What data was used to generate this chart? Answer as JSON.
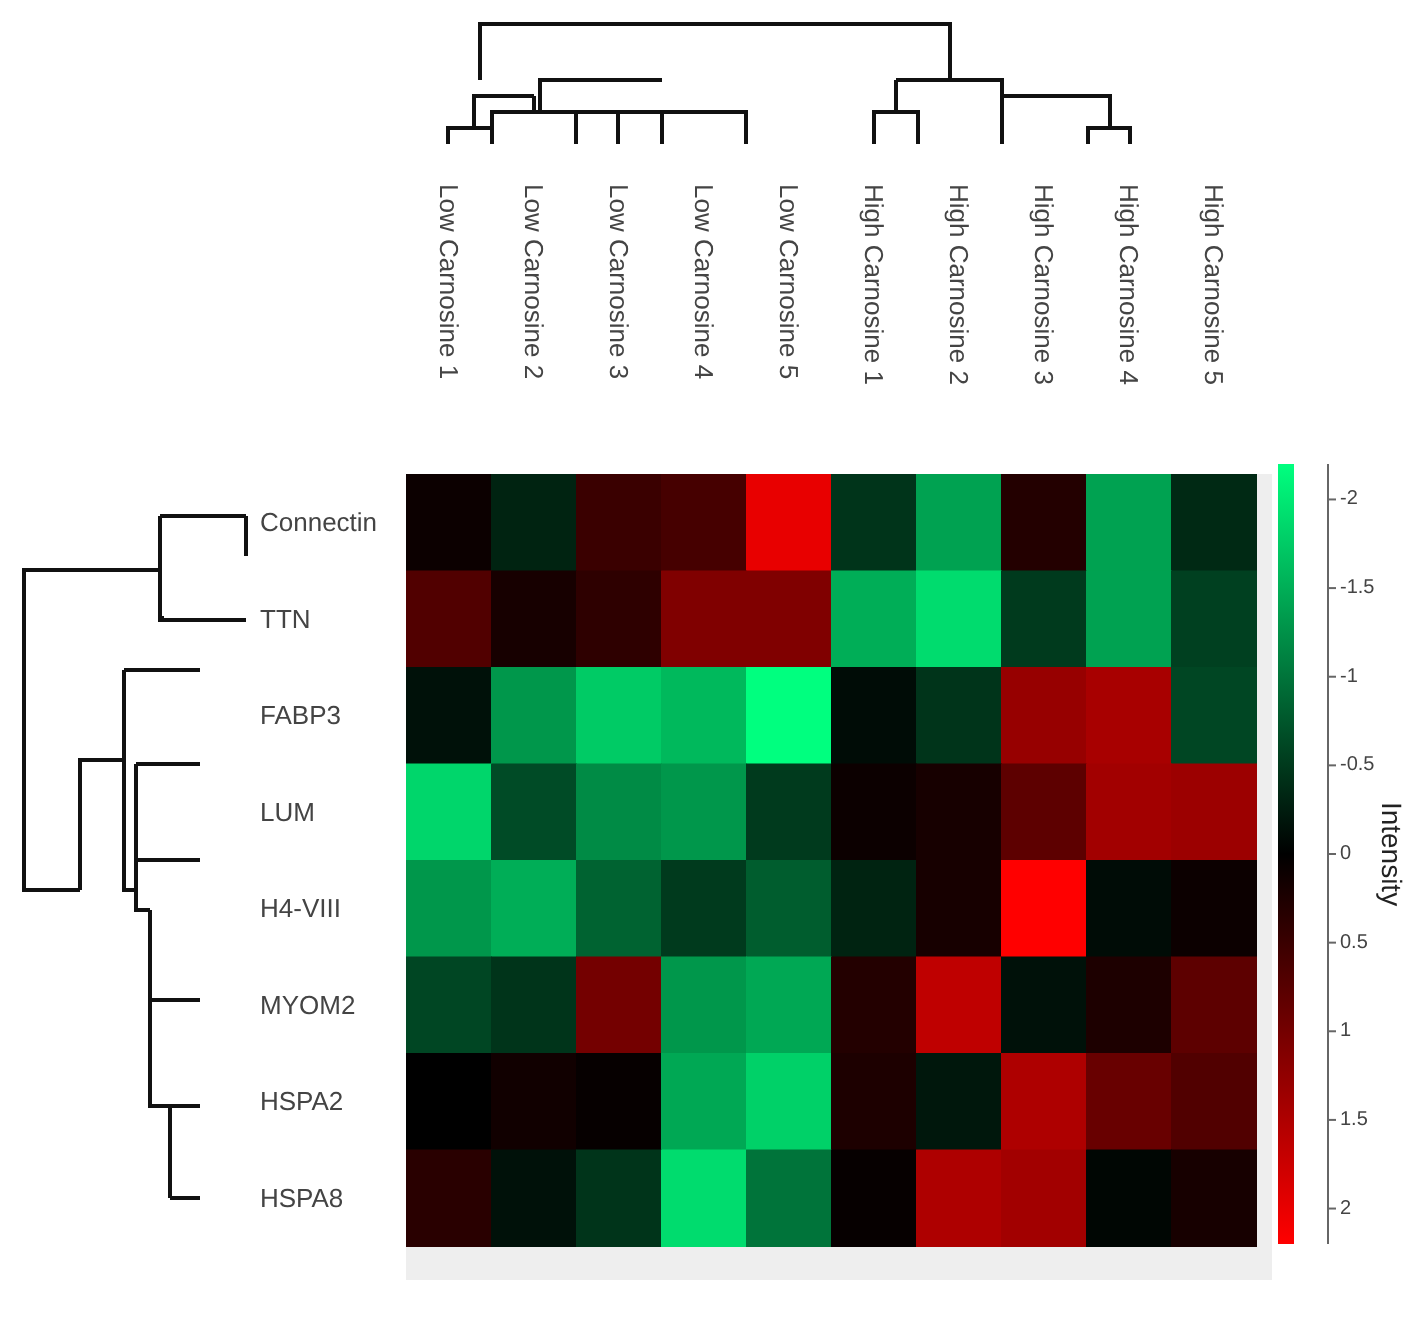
{
  "chart_data": {
    "type": "heatmap",
    "clabel": "Intensity",
    "categories": [
      "Low Carnosine 1",
      "Low Carnosine 2",
      "Low Carnosine 3",
      "Low Carnosine 4",
      "Low Carnosine 5",
      "High Carnosine 1",
      "High Carnosine 2",
      "High Carnosine 3",
      "High Carnosine 4",
      "High Carnosine 5"
    ],
    "y_categories": [
      "Connectin",
      "TTN",
      "FABP3",
      "LUM",
      "H4-VIII",
      "MYOM2",
      "HSPA2",
      "HSPA8"
    ],
    "cells": [
      [
        0.1,
        -0.3,
        0.5,
        0.6,
        2.0,
        -0.45,
        -1.4,
        0.3,
        -1.4,
        -0.35
      ],
      [
        0.7,
        0.2,
        0.4,
        1.1,
        1.1,
        -1.5,
        -1.9,
        -0.5,
        -1.4,
        -0.55
      ],
      [
        -0.15,
        -1.3,
        -1.75,
        -1.6,
        -2.2,
        -0.1,
        -0.45,
        1.3,
        1.45,
        -0.6
      ],
      [
        -1.85,
        -0.65,
        -1.2,
        -1.3,
        -0.5,
        0.1,
        0.2,
        0.8,
        1.4,
        1.35
      ],
      [
        -1.3,
        -1.5,
        -0.85,
        -0.5,
        -0.8,
        -0.3,
        0.2,
        2.2,
        -0.1,
        0.1
      ],
      [
        -0.6,
        -0.45,
        1.0,
        -1.3,
        -1.45,
        0.3,
        1.65,
        -0.15,
        0.25,
        0.8
      ],
      [
        0,
        0.15,
        0.05,
        -1.45,
        -1.8,
        0.25,
        -0.2,
        1.5,
        0.9,
        0.7
      ],
      [
        0.35,
        -0.15,
        -0.45,
        -1.9,
        -1.0,
        0.05,
        1.5,
        1.4,
        -0.05,
        0.2
      ]
    ],
    "clim": [
      -2.2,
      2.2
    ],
    "cticks": [
      -2,
      -1.5,
      -1,
      -0.5,
      0,
      0.5,
      1,
      1.5,
      2
    ]
  }
}
